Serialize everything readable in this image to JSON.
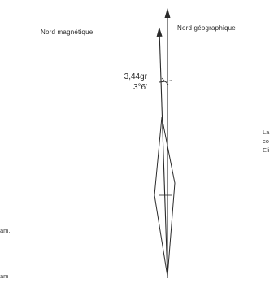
{
  "labels": {
    "magnetic_north": "Nord magnétique",
    "geographic_north": "Nord géographique",
    "declination_grades": "3,44gr",
    "declination_degrees": "3°6'"
  },
  "margin_text": {
    "right": [
      "La",
      "co",
      "Eli"
    ],
    "left": [
      "am.",
      "am"
    ]
  },
  "colors": {
    "ink": "#2a2a2a",
    "background": "#ffffff"
  }
}
